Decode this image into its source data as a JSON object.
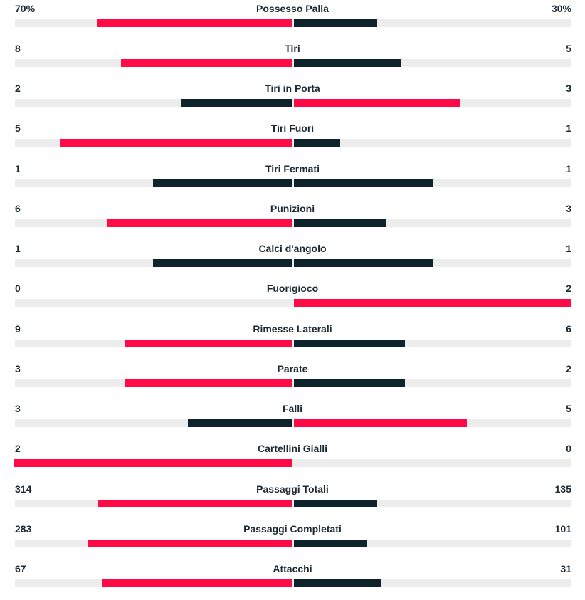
{
  "colors": {
    "highlight": "#ff0a47",
    "dark": "#0f232c",
    "track": "#ececec"
  },
  "stats": [
    {
      "label": "Possesso Palla",
      "home": "70%",
      "away": "30%",
      "home_value": 70,
      "away_value": 30
    },
    {
      "label": "Tiri",
      "home": "8",
      "away": "5",
      "home_value": 8,
      "away_value": 5
    },
    {
      "label": "Tiri in Porta",
      "home": "2",
      "away": "3",
      "home_value": 2,
      "away_value": 3
    },
    {
      "label": "Tiri Fuori",
      "home": "5",
      "away": "1",
      "home_value": 5,
      "away_value": 1
    },
    {
      "label": "Tiri Fermati",
      "home": "1",
      "away": "1",
      "home_value": 1,
      "away_value": 1
    },
    {
      "label": "Punizioni",
      "home": "6",
      "away": "3",
      "home_value": 6,
      "away_value": 3
    },
    {
      "label": "Calci d'angolo",
      "home": "1",
      "away": "1",
      "home_value": 1,
      "away_value": 1
    },
    {
      "label": "Fuorigioco",
      "home": "0",
      "away": "2",
      "home_value": 0,
      "away_value": 2
    },
    {
      "label": "Rimesse Laterali",
      "home": "9",
      "away": "6",
      "home_value": 9,
      "away_value": 6
    },
    {
      "label": "Parate",
      "home": "3",
      "away": "2",
      "home_value": 3,
      "away_value": 2
    },
    {
      "label": "Falli",
      "home": "3",
      "away": "5",
      "home_value": 3,
      "away_value": 5
    },
    {
      "label": "Cartellini Gialli",
      "home": "2",
      "away": "0",
      "home_value": 2,
      "away_value": 0
    },
    {
      "label": "Passaggi Totali",
      "home": "314",
      "away": "135",
      "home_value": 314,
      "away_value": 135
    },
    {
      "label": "Passaggi Completati",
      "home": "283",
      "away": "101",
      "home_value": 283,
      "away_value": 101
    },
    {
      "label": "Attacchi",
      "home": "67",
      "away": "31",
      "home_value": 67,
      "away_value": 31
    }
  ]
}
